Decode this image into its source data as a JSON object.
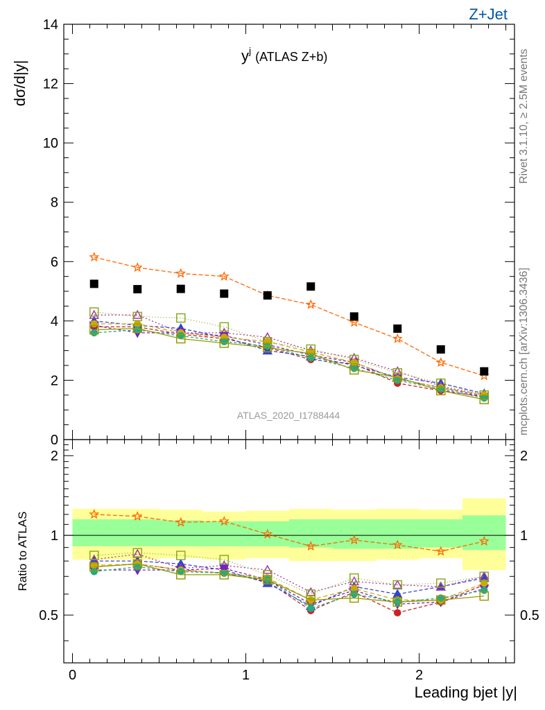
{
  "header": {
    "group_label": "Z+Jet",
    "group_label_color": "#0055aa",
    "side_note_top": "Rivet 3.1.10, ≥ 2.5M events",
    "side_note_bottom": "mcplots.cern.ch [arXiv:1306.3436]",
    "analysis_id": "ATLAS_2020_I1788444"
  },
  "chart_data": [
    {
      "type": "scatter",
      "panel": "main",
      "title_main": "y",
      "title_sup": "j",
      "title_rest": "(ATLAS Z+b)",
      "ylabel": "dσ/d|y|",
      "ylim": [
        0,
        14
      ],
      "xlim": [
        -0.05,
        2.55
      ],
      "yticks": [
        0,
        2,
        4,
        6,
        8,
        10,
        12,
        14
      ],
      "x": [
        0.125,
        0.375,
        0.625,
        0.875,
        1.125,
        1.375,
        1.625,
        1.875,
        2.125,
        2.375
      ],
      "data_series": {
        "name": "ATLAS",
        "color": "#000000",
        "values": [
          5.25,
          5.07,
          5.08,
          4.92,
          4.86,
          5.16,
          4.15,
          3.74,
          3.04,
          2.3
        ]
      },
      "series": [
        {
          "color": "#ff6600",
          "dash": "6,3",
          "marker": "star",
          "values": [
            6.15,
            5.8,
            5.6,
            5.5,
            4.86,
            4.55,
            3.95,
            3.4,
            2.6,
            2.15
          ]
        },
        {
          "color": "#cc2222",
          "dash": "5,3",
          "marker": "circle",
          "values": [
            3.8,
            3.8,
            3.55,
            3.4,
            3.1,
            2.7,
            2.55,
            1.9,
            1.65,
            1.45
          ]
        },
        {
          "color": "#3344cc",
          "dash": "5,3",
          "marker": "triangle",
          "values": [
            4.0,
            3.85,
            3.75,
            3.45,
            3.0,
            2.8,
            2.5,
            2.1,
            1.9,
            1.55
          ]
        },
        {
          "color": "#aa33aa",
          "dash": "2,3",
          "marker": "triangle-open",
          "values": [
            4.2,
            4.2,
            3.6,
            3.6,
            3.45,
            3.0,
            2.75,
            2.3,
            1.8,
            1.5
          ]
        },
        {
          "color": "#7722bb",
          "dash": "4,3",
          "marker": "triangle-down",
          "values": [
            3.85,
            3.6,
            3.6,
            3.5,
            3.2,
            2.85,
            2.6,
            2.05,
            1.75,
            1.45
          ]
        },
        {
          "color": "#ccaa00",
          "dash": "6,4",
          "marker": "circle",
          "values": [
            3.9,
            3.9,
            3.6,
            3.45,
            3.3,
            2.95,
            2.6,
            2.05,
            1.75,
            1.5
          ]
        },
        {
          "color": "#22aa88",
          "dash": "4,3",
          "marker": "circle",
          "values": [
            3.6,
            3.7,
            3.5,
            3.3,
            3.15,
            2.75,
            2.4,
            2.0,
            1.7,
            1.4
          ]
        },
        {
          "color": "#88aa22",
          "dash": "1,3",
          "marker": "square-open",
          "values": [
            4.3,
            4.15,
            4.1,
            3.8,
            3.3,
            3.05,
            2.7,
            2.25,
            1.9,
            1.5
          ]
        },
        {
          "color": "#999900",
          "dash": "",
          "marker": "square-open",
          "values": [
            3.7,
            3.75,
            3.4,
            3.25,
            3.1,
            2.9,
            2.35,
            2.1,
            1.65,
            1.35
          ]
        }
      ]
    },
    {
      "type": "scatter",
      "panel": "ratio",
      "ylabel": "Ratio to ATLAS",
      "ylim": [
        0.33,
        2.3
      ],
      "yscale": "log",
      "yticks": [
        0.5,
        1,
        2
      ],
      "ytick_labels": [
        "0.5",
        "1",
        "2"
      ],
      "xlim": [
        -0.05,
        2.55
      ],
      "xticks": [
        0,
        1,
        2
      ],
      "xlabel": "Leading bjet |y|",
      "x": [
        0.125,
        0.375,
        0.625,
        0.875,
        1.125,
        1.375,
        1.625,
        1.875,
        2.125,
        2.375
      ],
      "reference_line": 1,
      "band_outer": {
        "color": "#ffff99",
        "lo": [
          0.81,
          0.81,
          0.82,
          0.81,
          0.82,
          0.8,
          0.8,
          0.81,
          0.82,
          0.74
        ],
        "hi": [
          1.26,
          1.26,
          1.25,
          1.23,
          1.24,
          1.26,
          1.25,
          1.26,
          1.25,
          1.38
        ]
      },
      "band_inner": {
        "color": "#99ff99",
        "lo": [
          0.91,
          0.91,
          0.91,
          0.91,
          0.91,
          0.9,
          0.89,
          0.89,
          0.9,
          0.88
        ],
        "hi": [
          1.15,
          1.15,
          1.14,
          1.13,
          1.13,
          1.15,
          1.15,
          1.15,
          1.15,
          1.19
        ]
      },
      "series": [
        {
          "color": "#ff6600",
          "dash": "6,3",
          "marker": "star",
          "values": [
            1.2,
            1.18,
            1.12,
            1.13,
            1.01,
            0.91,
            0.96,
            0.92,
            0.87,
            0.95
          ]
        },
        {
          "color": "#cc2222",
          "dash": "5,3",
          "marker": "circle",
          "values": [
            0.76,
            0.78,
            0.74,
            0.72,
            0.67,
            0.52,
            0.61,
            0.51,
            0.56,
            0.65
          ]
        },
        {
          "color": "#3344cc",
          "dash": "5,3",
          "marker": "triangle",
          "values": [
            0.8,
            0.8,
            0.78,
            0.74,
            0.66,
            0.54,
            0.64,
            0.6,
            0.64,
            0.69
          ]
        },
        {
          "color": "#aa33aa",
          "dash": "2,3",
          "marker": "triangle-open",
          "values": [
            0.81,
            0.85,
            0.75,
            0.77,
            0.74,
            0.61,
            0.67,
            0.65,
            0.64,
            0.7
          ]
        },
        {
          "color": "#7722bb",
          "dash": "4,3",
          "marker": "triangle-down",
          "values": [
            0.74,
            0.74,
            0.74,
            0.75,
            0.68,
            0.55,
            0.62,
            0.55,
            0.56,
            0.63
          ]
        },
        {
          "color": "#ccaa00",
          "dash": "6,4",
          "marker": "circle",
          "values": [
            0.77,
            0.78,
            0.74,
            0.72,
            0.69,
            0.57,
            0.63,
            0.57,
            0.57,
            0.66
          ]
        },
        {
          "color": "#22aa88",
          "dash": "4,3",
          "marker": "circle",
          "values": [
            0.73,
            0.76,
            0.73,
            0.72,
            0.68,
            0.53,
            0.6,
            0.56,
            0.58,
            0.62
          ]
        },
        {
          "color": "#88aa22",
          "dash": "1,3",
          "marker": "square-open",
          "values": [
            0.84,
            0.86,
            0.84,
            0.81,
            0.71,
            0.6,
            0.69,
            0.65,
            0.66,
            0.7
          ]
        },
        {
          "color": "#999900",
          "dash": "",
          "marker": "square-open",
          "values": [
            0.76,
            0.78,
            0.71,
            0.71,
            0.68,
            0.57,
            0.58,
            0.56,
            0.57,
            0.59
          ]
        }
      ]
    }
  ]
}
